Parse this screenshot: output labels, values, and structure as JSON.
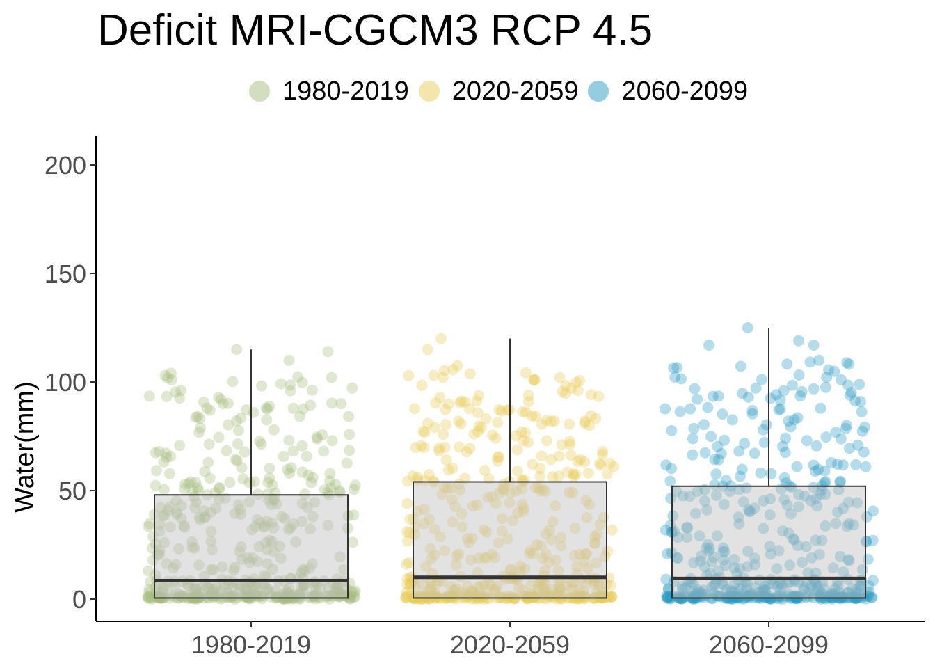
{
  "chart_data": {
    "type": "box",
    "title": "Deficit MRI-CGCM3 RCP 4.5",
    "xlabel": "",
    "ylabel": "Water(mm)",
    "ylim": [
      -10,
      213
    ],
    "yticks": [
      0,
      50,
      100,
      150,
      200
    ],
    "grid": false,
    "legend_position": "top",
    "legend": [
      {
        "label": "1980-2019",
        "color": "#a6bd7d"
      },
      {
        "label": "2020-2059",
        "color": "#e8cb57"
      },
      {
        "label": "2060-2099",
        "color": "#2b9cc2"
      }
    ],
    "categories": [
      "1980-2019",
      "2020-2059",
      "2060-2099"
    ],
    "series": [
      {
        "name": "1980-2019",
        "color": "#a6bd7d",
        "min": 0,
        "q1": 0.5,
        "median": 8.5,
        "q3": 48,
        "max": 115,
        "n_points": 480,
        "outliers_high": [
          115,
          114,
          110,
          104,
          103
        ]
      },
      {
        "name": "2020-2059",
        "color": "#e8cb57",
        "min": 0,
        "q1": 0.5,
        "median": 10,
        "q3": 54,
        "max": 120,
        "n_points": 480,
        "outliers_high": [
          120,
          115,
          103,
          102,
          101
        ]
      },
      {
        "name": "2060-2099",
        "color": "#2b9cc2",
        "min": 0,
        "q1": 0.5,
        "median": 9.5,
        "q3": 52,
        "max": 125,
        "n_points": 480,
        "outliers_high": [
          125,
          119,
          117,
          117,
          110
        ]
      }
    ]
  }
}
